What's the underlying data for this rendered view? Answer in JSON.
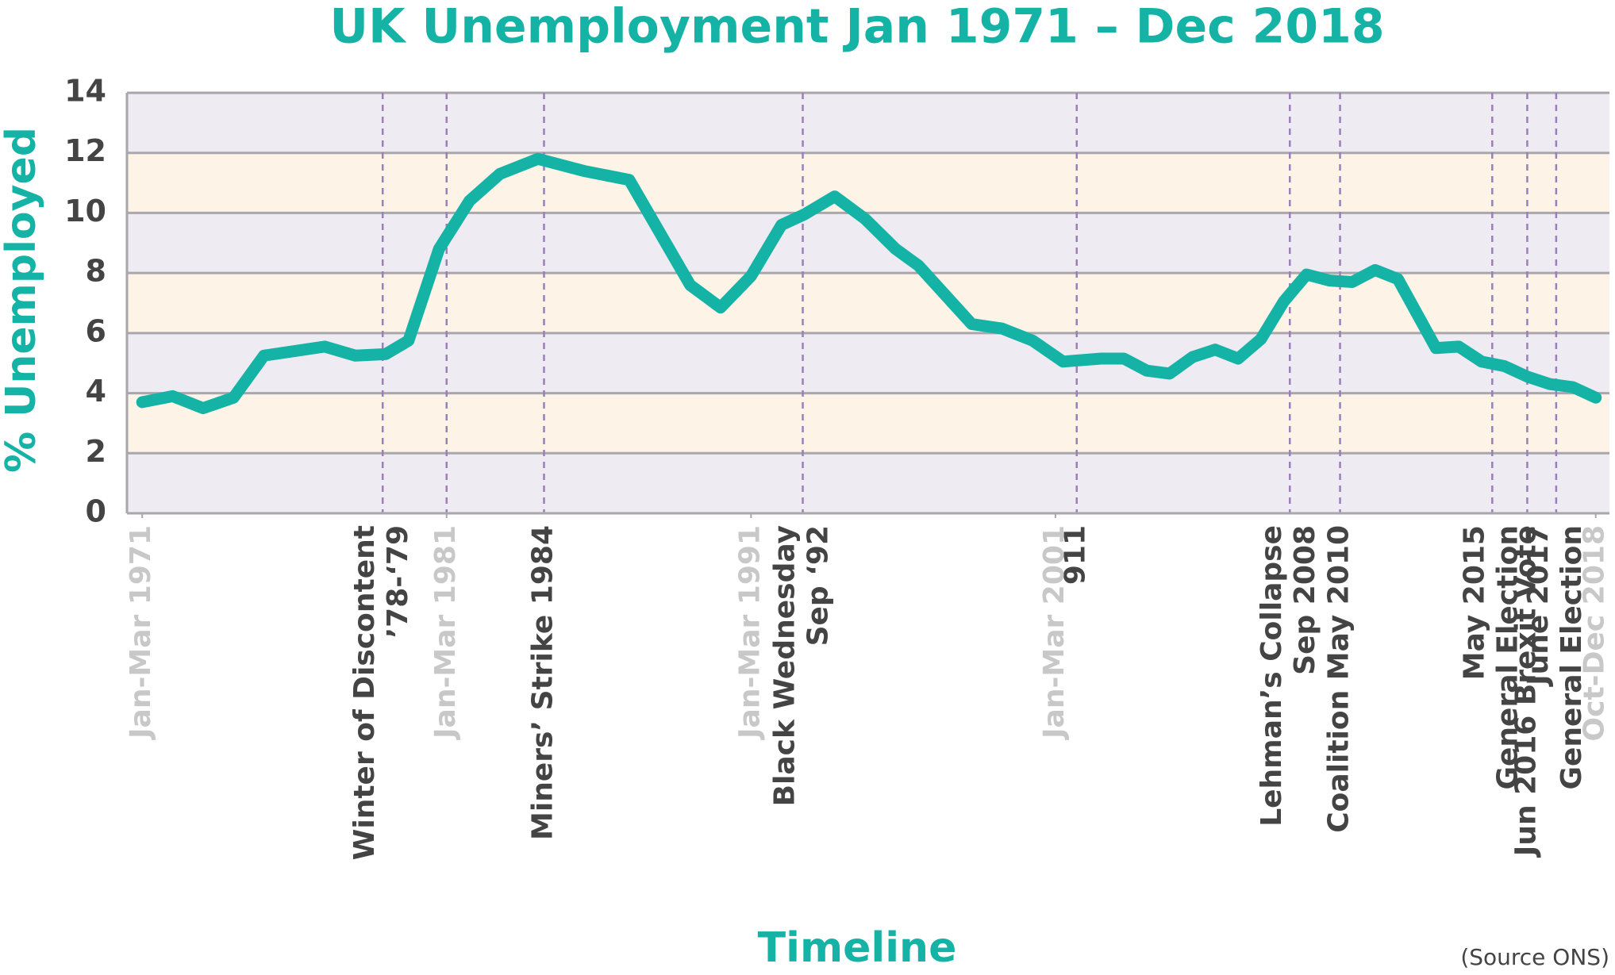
{
  "chart_data": {
    "type": "line",
    "title": "UK Unemployment  Jan 1971 – Dec 2018",
    "y_label": "% Unemployed",
    "x_label": "Timeline",
    "source": "(Source ONS)",
    "x": [
      1971.0,
      1972.0,
      1973.0,
      1974.0,
      1975.0,
      1977.0,
      1978.0,
      1979.0,
      1979.75,
      1980.75,
      1981.75,
      1982.75,
      1984.0,
      1985.5,
      1987.0,
      1989.0,
      1990.0,
      1991.0,
      1992.0,
      1992.75,
      1993.75,
      1994.75,
      1995.75,
      1996.5,
      1998.25,
      1999.25,
      2000.25,
      2001.25,
      2002.5,
      2003.25,
      2004.0,
      2004.75,
      2005.5,
      2006.25,
      2007.0,
      2007.75,
      2008.5,
      2009.25,
      2010.0,
      2010.75,
      2011.5,
      2012.25,
      2013.5,
      2014.25,
      2015.0,
      2015.75,
      2016.5,
      2017.25,
      2018.0,
      2018.75
    ],
    "series": [
      {
        "name": "% Unemployed",
        "color": "#14b3a5",
        "values": [
          3.7,
          3.9,
          3.5,
          3.85,
          5.25,
          5.55,
          5.25,
          5.3,
          5.75,
          8.8,
          10.4,
          11.3,
          11.8,
          11.4,
          11.1,
          7.6,
          6.85,
          7.9,
          9.6,
          9.95,
          10.55,
          9.8,
          8.8,
          8.25,
          6.3,
          6.15,
          5.75,
          5.05,
          5.15,
          5.15,
          4.75,
          4.65,
          5.2,
          5.45,
          5.15,
          5.8,
          7.05,
          7.95,
          7.75,
          7.7,
          8.1,
          7.8,
          5.5,
          5.55,
          5.05,
          4.9,
          4.55,
          4.3,
          4.2,
          3.85
        ]
      }
    ],
    "xlim": [
      1970.5,
      2019.2
    ],
    "xticks": [
      {
        "value": 1971.0,
        "label": "Jan-Mar 1971"
      },
      {
        "value": 1981.0,
        "label": "Jan-Mar 1981"
      },
      {
        "value": 1991.0,
        "label": "Jan-Mar 1991"
      },
      {
        "value": 2001.0,
        "label": "Jan-Mar 2001"
      },
      {
        "value": 2018.75,
        "label": "Oct-Dec 2018"
      }
    ],
    "ylim": [
      0,
      14
    ],
    "yticks": [
      0,
      2,
      4,
      6,
      8,
      10,
      12,
      14
    ],
    "grid": true,
    "band_colors": [
      "#efebf2",
      "#fdf4e7"
    ],
    "annotations": [
      {
        "x": 1978.9,
        "text": [
          "Winter of Discontent",
          "’78-‘79"
        ]
      },
      {
        "x": 1981.0
      },
      {
        "x": 1984.2,
        "text": [
          "Miners’ Strike 1984"
        ]
      },
      {
        "x": 1992.7,
        "text": [
          "Black Wednesday",
          "Sep ‘92"
        ]
      },
      {
        "x": 2001.7,
        "text": [
          "911"
        ]
      },
      {
        "x": 2008.7,
        "text": [
          "Lehman’s Collapse",
          "Sep 2008"
        ]
      },
      {
        "x": 2010.35,
        "text": [
          "Coalition May 2010"
        ]
      },
      {
        "x": 2015.35,
        "text": [
          "May 2015",
          "General Election"
        ]
      },
      {
        "x": 2016.5,
        "text": [
          "Jun 2016 Brexit Vote"
        ]
      },
      {
        "x": 2017.45,
        "text": [
          "June 2017",
          "General Election"
        ]
      }
    ]
  }
}
